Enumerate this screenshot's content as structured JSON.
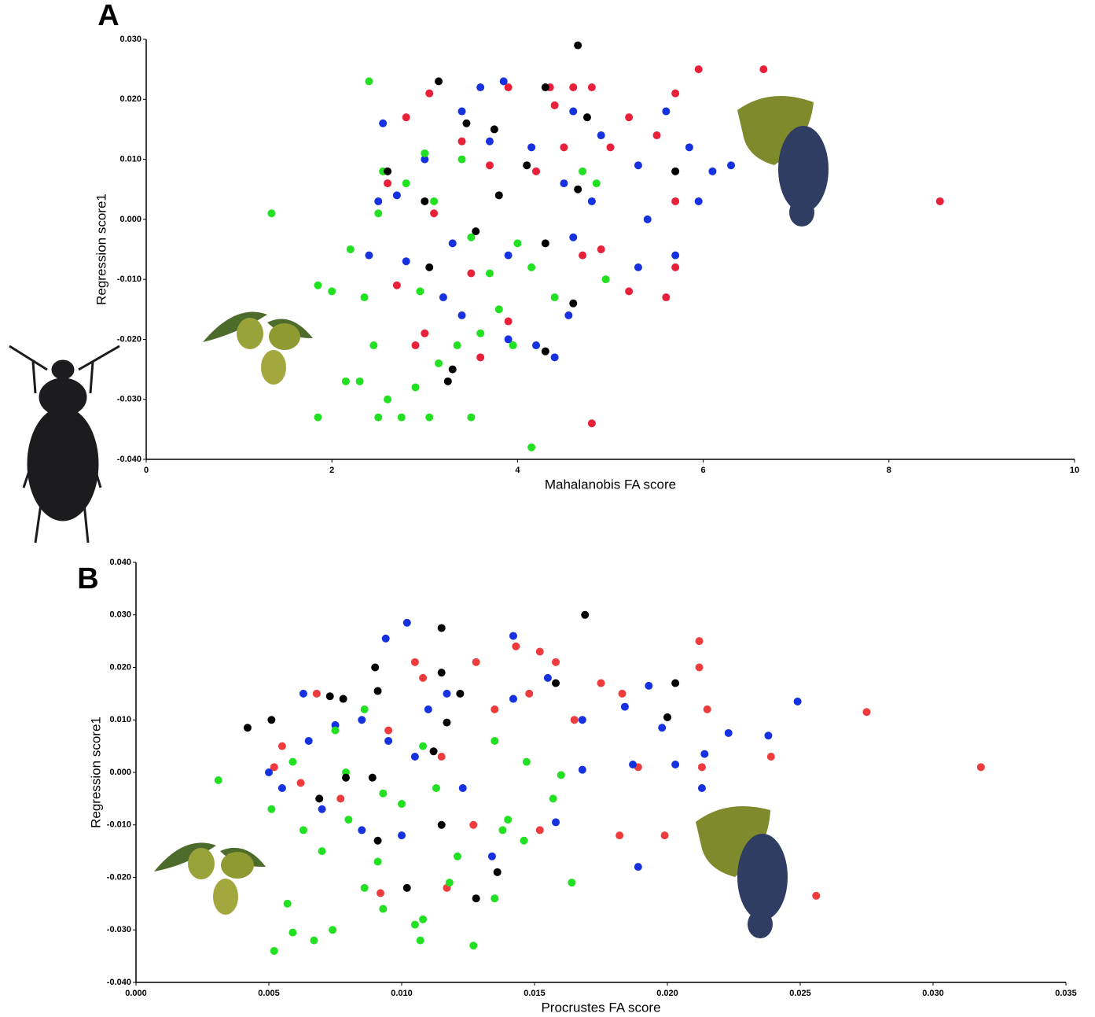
{
  "chart_data": [
    {
      "type": "scatter",
      "label": "A",
      "xlabel": "Mahalanobis FA score",
      "ylabel": "Regression score1",
      "xlim": [
        0,
        10
      ],
      "ylim": [
        -0.04,
        0.03
      ],
      "xticks": [
        0,
        2,
        4,
        6,
        8,
        10
      ],
      "yticks": [
        {
          "value": 0.03,
          "label": "0.030"
        },
        {
          "value": 0.02,
          "label": "0.020"
        },
        {
          "value": 0.01,
          "label": "0.010"
        },
        {
          "value": 0,
          "label": "0.000"
        },
        {
          "value": -0.01,
          "label": "-0.010"
        },
        {
          "value": -0.02,
          "label": "-0.020"
        },
        {
          "value": -0.03,
          "label": "-0.030"
        },
        {
          "value": -0.04,
          "label": "-0.040"
        }
      ],
      "series": [
        {
          "color": "#e8203a",
          "x": [
            8.55,
            6.65,
            5.95,
            5.7,
            4.8,
            4.35,
            4.6,
            4.8,
            3.9,
            3.05,
            5.2,
            5.0,
            5.5,
            5.7,
            5.6,
            5.2,
            4.9,
            4.7,
            3.6,
            3.9,
            2.9,
            3.0,
            2.7,
            3.5,
            3.1,
            2.6,
            4.2,
            4.4,
            3.7,
            2.8,
            5.7,
            4.5,
            3.4
          ],
          "values": [
            0.003,
            0.025,
            0.025,
            0.021,
            -0.034,
            0.022,
            0.022,
            0.022,
            0.022,
            0.021,
            0.017,
            0.012,
            0.014,
            0.003,
            -0.013,
            -0.012,
            -0.005,
            -0.006,
            -0.023,
            -0.017,
            -0.021,
            -0.019,
            -0.011,
            -0.009,
            0.001,
            0.006,
            0.008,
            0.019,
            0.009,
            0.017,
            -0.008,
            0.012,
            0.013
          ]
        },
        {
          "color": "#1531e0",
          "x": [
            6.3,
            6.1,
            5.85,
            5.95,
            5.7,
            5.6,
            5.4,
            5.3,
            4.6,
            4.9,
            4.8,
            4.5,
            3.85,
            3.6,
            3.4,
            2.55,
            2.5,
            2.7,
            2.4,
            2.8,
            3.2,
            3.4,
            3.9,
            4.2,
            4.4,
            4.55,
            4.6,
            3.9,
            3.3,
            3.0,
            3.7,
            4.15,
            5.3
          ],
          "values": [
            0.009,
            0.008,
            0.012,
            0.003,
            -0.006,
            0.018,
            0.0,
            -0.008,
            0.018,
            0.014,
            0.003,
            0.006,
            0.023,
            0.022,
            0.018,
            0.016,
            0.003,
            0.004,
            -0.006,
            -0.007,
            -0.013,
            -0.016,
            -0.02,
            -0.021,
            -0.023,
            -0.016,
            -0.003,
            -0.006,
            -0.004,
            0.01,
            0.013,
            0.012,
            0.009
          ]
        },
        {
          "color": "#22e022",
          "x": [
            1.35,
            2.4,
            1.85,
            1.85,
            2.15,
            2.3,
            2.5,
            2.75,
            3.05,
            3.5,
            4.15,
            2.0,
            2.2,
            2.35,
            2.45,
            2.6,
            2.9,
            3.15,
            3.35,
            3.6,
            3.95,
            2.55,
            2.5,
            2.8,
            3.1,
            3.5,
            3.7,
            4.0,
            4.15,
            4.7,
            4.85,
            4.95,
            4.4,
            3.8,
            2.95,
            3.4,
            3.0
          ],
          "values": [
            0.001,
            0.023,
            -0.011,
            -0.033,
            -0.027,
            -0.027,
            -0.033,
            -0.033,
            -0.033,
            -0.033,
            -0.038,
            -0.012,
            -0.005,
            -0.013,
            -0.021,
            -0.03,
            -0.028,
            -0.024,
            -0.021,
            -0.019,
            -0.021,
            0.008,
            0.001,
            0.006,
            0.003,
            -0.003,
            -0.009,
            -0.004,
            -0.008,
            0.008,
            0.006,
            -0.01,
            -0.013,
            -0.015,
            -0.012,
            0.01,
            0.011
          ]
        },
        {
          "color": "#000000",
          "x": [
            4.65,
            3.15,
            4.3,
            4.75,
            3.45,
            5.7,
            3.75,
            2.6,
            3.0,
            3.05,
            3.3,
            3.25,
            4.3,
            4.6,
            4.3,
            3.8,
            4.65,
            3.55,
            4.1
          ],
          "values": [
            0.029,
            0.023,
            0.022,
            0.017,
            0.016,
            0.008,
            0.015,
            0.008,
            0.003,
            -0.008,
            -0.025,
            -0.027,
            -0.022,
            -0.014,
            -0.004,
            0.004,
            0.005,
            -0.002,
            0.009
          ]
        }
      ]
    },
    {
      "type": "scatter",
      "label": "B",
      "xlabel": "Procrustes FA score",
      "ylabel": "Regression score1",
      "xlim": [
        0,
        0.035
      ],
      "ylim": [
        -0.04,
        0.04
      ],
      "xticks": [
        {
          "value": 0,
          "label": "0.000"
        },
        {
          "value": 0.005,
          "label": "0.005"
        },
        {
          "value": 0.01,
          "label": "0.010"
        },
        {
          "value": 0.015,
          "label": "0.015"
        },
        {
          "value": 0.02,
          "label": "0.020"
        },
        {
          "value": 0.025,
          "label": "0.025"
        },
        {
          "value": 0.03,
          "label": "0.030"
        },
        {
          "value": 0.035,
          "label": "0.035"
        }
      ],
      "yticks": [
        {
          "value": 0.04,
          "label": "0.040"
        },
        {
          "value": 0.03,
          "label": "0.030"
        },
        {
          "value": 0.02,
          "label": "0.020"
        },
        {
          "value": 0.01,
          "label": "0.010"
        },
        {
          "value": 0,
          "label": "0.000"
        },
        {
          "value": -0.01,
          "label": "-0.010"
        },
        {
          "value": -0.02,
          "label": "-0.020"
        },
        {
          "value": -0.03,
          "label": "-0.030"
        },
        {
          "value": -0.04,
          "label": "-0.040"
        }
      ],
      "series": [
        {
          "color": "#ee3b3b",
          "x": [
            0.0318,
            0.0275,
            0.0256,
            0.0239,
            0.0212,
            0.0212,
            0.0215,
            0.0213,
            0.0199,
            0.0189,
            0.0182,
            0.0183,
            0.0175,
            0.0158,
            0.0152,
            0.0143,
            0.0128,
            0.0105,
            0.0108,
            0.0068,
            0.0055,
            0.0052,
            0.0062,
            0.0077,
            0.0092,
            0.0117,
            0.0127,
            0.0152,
            0.0165,
            0.0148,
            0.0095,
            0.0135,
            0.0115
          ],
          "values": [
            0.001,
            0.0115,
            -0.0235,
            0.003,
            0.025,
            0.02,
            0.012,
            0.001,
            -0.012,
            0.001,
            -0.012,
            0.015,
            0.017,
            0.021,
            0.023,
            0.024,
            0.021,
            0.021,
            0.018,
            0.015,
            0.005,
            0.001,
            -0.002,
            -0.005,
            -0.023,
            -0.022,
            -0.01,
            -0.011,
            0.01,
            0.015,
            0.008,
            0.012,
            0.003
          ]
        },
        {
          "color": "#1531e0",
          "x": [
            0.0249,
            0.0238,
            0.0223,
            0.0214,
            0.0213,
            0.0203,
            0.0198,
            0.0193,
            0.0189,
            0.0187,
            0.0184,
            0.0168,
            0.0168,
            0.0158,
            0.0142,
            0.0102,
            0.0094,
            0.0063,
            0.005,
            0.0055,
            0.0065,
            0.0075,
            0.0085,
            0.0095,
            0.0105,
            0.007,
            0.0085,
            0.01,
            0.0123,
            0.0134,
            0.0142,
            0.0155,
            0.0117,
            0.011
          ],
          "values": [
            0.0135,
            0.007,
            0.0075,
            0.0035,
            -0.003,
            0.0015,
            0.0085,
            0.0165,
            -0.018,
            0.0015,
            0.0125,
            0.01,
            0.0005,
            -0.0095,
            0.026,
            0.0285,
            0.0255,
            0.015,
            0.0,
            -0.003,
            0.006,
            0.009,
            0.01,
            0.006,
            0.003,
            -0.007,
            -0.011,
            -0.012,
            -0.003,
            -0.016,
            0.014,
            0.018,
            0.015,
            0.012
          ]
        },
        {
          "color": "#22e022",
          "x": [
            0.0031,
            0.0052,
            0.0057,
            0.0059,
            0.0067,
            0.0074,
            0.0086,
            0.0093,
            0.0105,
            0.0107,
            0.0108,
            0.0127,
            0.0135,
            0.0164,
            0.0051,
            0.0063,
            0.007,
            0.008,
            0.0091,
            0.01,
            0.0113,
            0.0121,
            0.014,
            0.0146,
            0.0157,
            0.016,
            0.0147,
            0.0135,
            0.0108,
            0.0086,
            0.0075,
            0.0059,
            0.0093,
            0.0118,
            0.0138,
            0.0079
          ],
          "values": [
            -0.0015,
            -0.034,
            -0.025,
            -0.0305,
            -0.032,
            -0.03,
            -0.022,
            -0.026,
            -0.029,
            -0.032,
            -0.028,
            -0.033,
            -0.024,
            -0.021,
            -0.007,
            -0.011,
            -0.015,
            -0.009,
            -0.017,
            -0.006,
            -0.003,
            -0.016,
            -0.009,
            -0.013,
            -0.005,
            -0.0005,
            0.002,
            0.006,
            0.005,
            0.012,
            0.008,
            0.002,
            -0.004,
            -0.021,
            -0.011,
            0.0
          ]
        },
        {
          "color": "#000000",
          "x": [
            0.0169,
            0.0115,
            0.0203,
            0.02,
            0.0158,
            0.009,
            0.0115,
            0.0042,
            0.0051,
            0.0078,
            0.0073,
            0.0091,
            0.0117,
            0.0122,
            0.0112,
            0.0069,
            0.0079,
            0.0089,
            0.0091,
            0.0102,
            0.0128,
            0.0136,
            0.0115
          ],
          "values": [
            0.03,
            0.0275,
            0.017,
            0.0105,
            0.017,
            0.02,
            0.019,
            0.0085,
            0.01,
            0.014,
            0.0145,
            0.0155,
            0.0095,
            0.015,
            0.004,
            -0.005,
            -0.001,
            -0.001,
            -0.013,
            -0.022,
            -0.024,
            -0.019,
            -0.01
          ]
        }
      ]
    }
  ]
}
